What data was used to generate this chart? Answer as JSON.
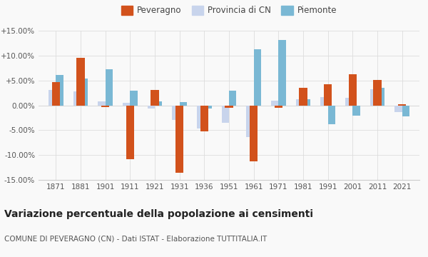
{
  "years": [
    1871,
    1881,
    1901,
    1911,
    1921,
    1931,
    1936,
    1951,
    1961,
    1971,
    1981,
    1991,
    2001,
    2011,
    2021
  ],
  "peveragno": [
    4.7,
    9.5,
    -0.3,
    -10.8,
    3.1,
    -13.5,
    -5.3,
    -0.5,
    -11.3,
    -0.5,
    3.5,
    4.3,
    6.3,
    5.1,
    0.3
  ],
  "provincia_cn": [
    3.1,
    2.8,
    0.8,
    0.5,
    -0.7,
    -3.0,
    -4.6,
    -3.5,
    -6.4,
    0.9,
    1.3,
    1.7,
    1.5,
    3.3,
    -1.3
  ],
  "piemonte": [
    6.1,
    5.4,
    7.3,
    2.9,
    0.8,
    0.6,
    -0.7,
    3.0,
    11.3,
    13.2,
    1.3,
    -3.8,
    -2.1,
    3.5,
    -2.2
  ],
  "color_peveragno": "#d2521c",
  "color_provincia": "#c8d4ec",
  "color_piemonte": "#7ab8d4",
  "ylim": [
    -15.0,
    15.0
  ],
  "yticks": [
    -15.0,
    -10.0,
    -5.0,
    0.0,
    5.0,
    10.0,
    15.0
  ],
  "ytick_labels": [
    "-15.00%",
    "-10.00%",
    "-5.00%",
    "0.00%",
    "+5.00%",
    "+10.00%",
    "+15.00%"
  ],
  "title": "Variazione percentuale della popolazione ai censimenti",
  "subtitle": "COMUNE DI PEVERAGNO (CN) - Dati ISTAT - Elaborazione TUTTITALIA.IT",
  "legend_labels": [
    "Peveragno",
    "Provincia di CN",
    "Piemonte"
  ],
  "background_color": "#f9f9f9",
  "grid_color": "#dddddd"
}
